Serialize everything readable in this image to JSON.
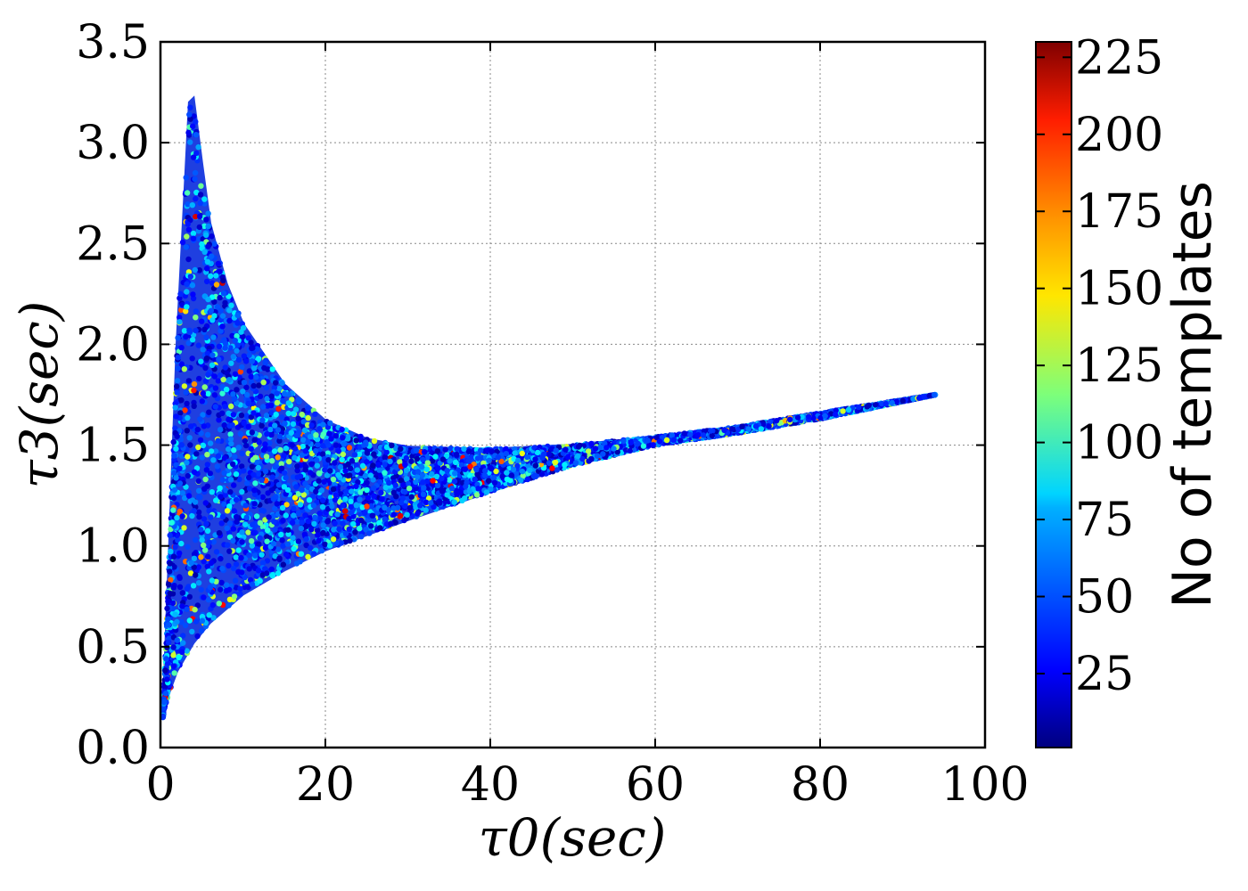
{
  "chart_data": {
    "type": "scatter",
    "title": "",
    "xlabel": "τ0(sec)",
    "ylabel": "τ3(sec)",
    "xlim": [
      0,
      100
    ],
    "ylim": [
      0.0,
      3.5
    ],
    "xticks": [
      "0",
      "20",
      "40",
      "60",
      "80",
      "100"
    ],
    "yticks": [
      "0.0",
      "0.5",
      "1.0",
      "1.5",
      "2.0",
      "2.5",
      "3.0",
      "3.5"
    ],
    "grid": true,
    "colorbar": {
      "label": "No of templates",
      "range": [
        1,
        230
      ],
      "ticks": [
        "25",
        "50",
        "75",
        "100",
        "125",
        "150",
        "175",
        "200",
        "225"
      ],
      "colormap": "jet"
    },
    "region": {
      "description_of_points": "dense scatter filling the tau0-tau3 parameter region",
      "upper_boundary": [
        [
          0.3,
          0.15
        ],
        [
          1.0,
          0.9
        ],
        [
          2.0,
          2.0
        ],
        [
          3.0,
          2.8
        ],
        [
          3.5,
          3.2
        ],
        [
          4.0,
          3.22
        ],
        [
          5.0,
          2.9
        ],
        [
          6.0,
          2.6
        ],
        [
          8.0,
          2.3
        ],
        [
          10.0,
          2.1
        ],
        [
          15.0,
          1.8
        ],
        [
          20.0,
          1.62
        ],
        [
          25.0,
          1.53
        ],
        [
          30.0,
          1.49
        ],
        [
          40.0,
          1.48
        ],
        [
          50.0,
          1.5
        ],
        [
          60.0,
          1.54
        ],
        [
          70.0,
          1.59
        ],
        [
          80.0,
          1.66
        ],
        [
          94.0,
          1.75
        ]
      ],
      "lower_boundary": [
        [
          94.0,
          1.75
        ],
        [
          80.0,
          1.63
        ],
        [
          70.0,
          1.56
        ],
        [
          60.0,
          1.5
        ],
        [
          50.0,
          1.4
        ],
        [
          40.0,
          1.27
        ],
        [
          30.0,
          1.13
        ],
        [
          20.0,
          0.98
        ],
        [
          15.0,
          0.88
        ],
        [
          10.0,
          0.76
        ],
        [
          6.0,
          0.62
        ],
        [
          4.0,
          0.52
        ],
        [
          2.0,
          0.38
        ],
        [
          1.0,
          0.27
        ],
        [
          0.3,
          0.15
        ]
      ],
      "count_distribution": "mostly 25-75 templates (blue/cyan), occasional 100-200 (green/yellow/red)"
    }
  }
}
